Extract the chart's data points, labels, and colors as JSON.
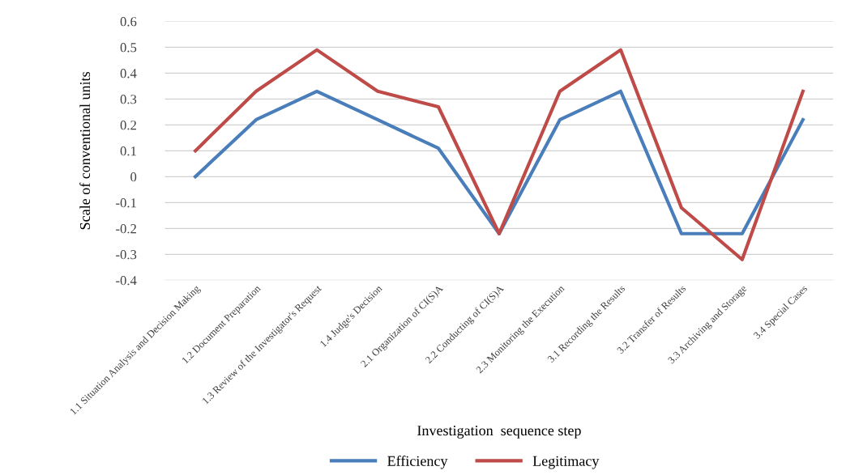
{
  "chart_data": {
    "type": "line",
    "categories": [
      "1.1 Situation Analysis and Decision Making",
      "1.2 Document Preparation",
      "1.3 Review of the Investigator's Request",
      "1.4 Judge's Decision",
      "2.1 Organization of CI(S)A",
      "2.2 Conducting of CI(S)A",
      "2.3 Monitoring the Execution",
      "3.1 Recording the Results",
      "3.2 Transfer of Results",
      "3.3 Archiving and Storage",
      "3.4 Special Cases"
    ],
    "series": [
      {
        "name": "Efficiency",
        "color": "#4a7ebb",
        "values": [
          0,
          0.22,
          0.33,
          0.22,
          0.11,
          -0.22,
          0.22,
          0.33,
          -0.22,
          -0.22,
          0.22
        ]
      },
      {
        "name": "Legitimacy",
        "color": "#be4b48",
        "values": [
          0.1,
          0.33,
          0.49,
          0.33,
          0.27,
          -0.22,
          0.33,
          0.49,
          -0.12,
          -0.32,
          0.33
        ]
      }
    ],
    "xlabel": "Investigation  sequence step",
    "ylabel": "Scale of conventional units",
    "ylim": [
      -0.4,
      0.6
    ],
    "yticks": [
      0.6,
      0.5,
      0.4,
      0.3,
      0.2,
      0.1,
      0,
      -0.1,
      -0.2,
      -0.3,
      -0.4
    ],
    "grid": "y",
    "legend": "bottom",
    "marker": "none",
    "line_style": "solid"
  }
}
